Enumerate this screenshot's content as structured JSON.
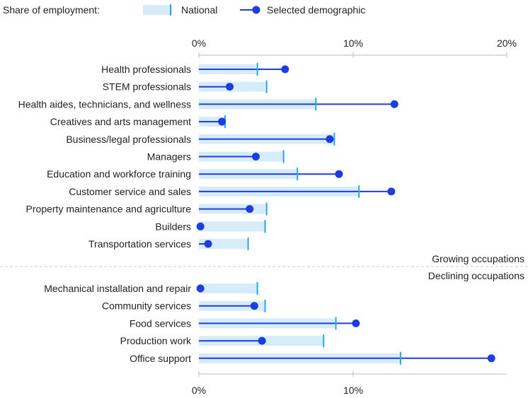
{
  "chart_data": {
    "type": "bar",
    "legend": {
      "title": "Share of employment:",
      "national_label": "National",
      "demographic_label": "Selected demographic"
    },
    "axis": {
      "min": 0,
      "max": 20,
      "unit": "%",
      "top_ticks": [
        "0%",
        "10%",
        "20%"
      ],
      "bottom_ticks": [
        "0%",
        "10%"
      ]
    },
    "groups": [
      {
        "name": "Growing occupations",
        "categories": [
          "Health professionals",
          "STEM professionals",
          "Health aides, technicians, and wellness",
          "Creatives and arts management",
          "Business/legal professionals",
          "Managers",
          "Education and workforce training",
          "Customer service and sales",
          "Property maintenance and agriculture",
          "Builders",
          "Transportation services"
        ],
        "national": [
          3.8,
          4.4,
          7.6,
          1.7,
          8.8,
          5.5,
          6.4,
          10.4,
          4.4,
          4.3,
          3.2
        ],
        "selected": [
          5.6,
          2.0,
          12.7,
          1.5,
          8.5,
          3.7,
          9.1,
          12.5,
          3.3,
          0.1,
          0.6
        ]
      },
      {
        "name": "Declining occupations",
        "categories": [
          "Mechanical installation and repair",
          "Community services",
          "Food services",
          "Production work",
          "Office support"
        ],
        "national": [
          3.8,
          4.3,
          8.9,
          8.1,
          13.1
        ],
        "selected": [
          0.1,
          3.6,
          10.2,
          4.1,
          19.0
        ]
      }
    ],
    "colors": {
      "national_fill": "#d6ecfb",
      "national_marker": "#26a8e8",
      "demographic": "#1c3ce4",
      "text": "#222222",
      "axis_line": "#bbbbbb",
      "divider": "#cccccc"
    }
  }
}
